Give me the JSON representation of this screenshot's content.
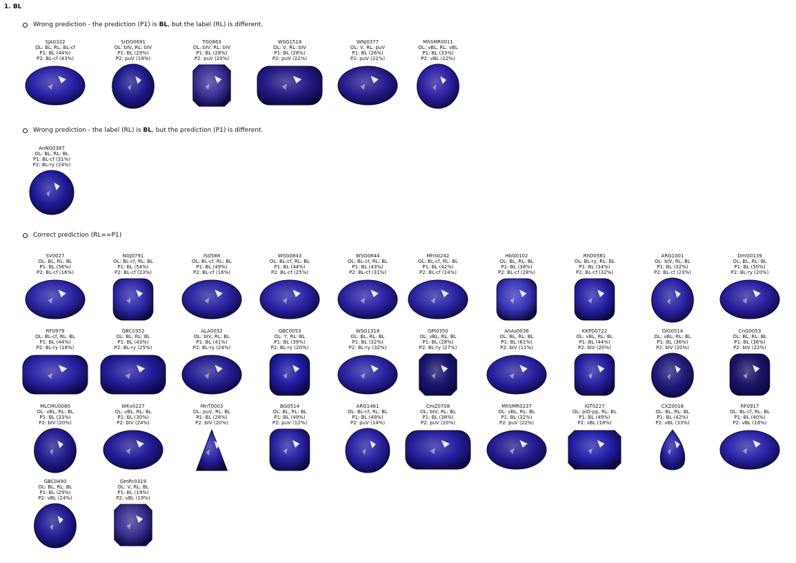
{
  "heading": "1. BL",
  "sections": [
    {
      "text_before": "Wrong prediction - the prediction (P1) is ",
      "bold": "BL",
      "text_after": ", but the label (RL) is different.",
      "gems": [
        {
          "id": "SJA0322",
          "ol": "OL: BL, RL: BL-cf",
          "p1": "P1: BL (44%)",
          "p2": "P2: BL-cf (43%)",
          "shape": "oval",
          "color": "#2a22a8"
        },
        {
          "id": "SrDG0691",
          "ol": "OL: bIV, RL: bIV",
          "p1": "P1: BL (29%)",
          "p2": "P2: puV (19%)",
          "shape": "round-oval",
          "color": "#1e1a8c"
        },
        {
          "id": "TG0863",
          "ol": "OL: bIV, RL: bIV",
          "p1": "P1: BL (28%)",
          "p2": "P2: puV (20%)",
          "shape": "cushion-square",
          "color": "#3b3296"
        },
        {
          "id": "WSG1518",
          "ol": "OL: V, RL: bIV",
          "p1": "P1: BL (28%)",
          "p2": "P2: puV (22%)",
          "shape": "cushion-wide",
          "color": "#241b86"
        },
        {
          "id": "WNJ0377",
          "ol": "OL: V, RL: puV",
          "p1": "P1: BL (26%)",
          "p2": "P2: puV (22%)",
          "shape": "oval",
          "color": "#271d8e"
        },
        {
          "id": "MhSMR0011",
          "ol": "OL: vBL, RL: vBL",
          "p1": "P1: BL (33%)",
          "p2": "P2: vBL (22%)",
          "shape": "round-oval",
          "color": "#2b1fa0"
        }
      ]
    },
    {
      "text_before": "Wrong prediction - the label (RL) is ",
      "bold": "BL",
      "text_after": ", but the prediction (P1) is different.",
      "gems": [
        {
          "id": "AnNG0387",
          "ol": "OL: BL, RL: BL",
          "p1": "P1: BL-cf (31%)",
          "p2": "P2: BL-ry (24%)",
          "shape": "round",
          "color": "#201a9a"
        }
      ]
    },
    {
      "text_before": "Correct prediction (RL==P1)",
      "bold": "",
      "text_after": "",
      "gems": [
        {
          "id": "SV0027",
          "ol": "OL: BL, RL: BL",
          "p1": "P1: BL (56%)",
          "p2": "P2: BL-cf (16%)",
          "shape": "oval",
          "color": "#2c25a6"
        },
        {
          "id": "NGJ0791",
          "ol": "OL: BL-cf, RL: BL",
          "p1": "P1: BL (54%)",
          "p2": "P2: BL-cf (23%)",
          "shape": "cushion",
          "color": "#3029a8"
        },
        {
          "id": "IS0588",
          "ol": "OL: BL-cf, RL: BL",
          "p1": "P1: BL (49%)",
          "p2": "P2: BL-cf (16%)",
          "shape": "oval",
          "color": "#2a23a0"
        },
        {
          "id": "WSG0843",
          "ol": "OL: BL-cf, RL: BL",
          "p1": "P1: BL (44%)",
          "p2": "P2: BL-cf (25%)",
          "shape": "oval",
          "color": "#2a22a4"
        },
        {
          "id": "WSG0844",
          "ol": "OL: BL-cf, RL: BL",
          "p1": "P1: BL (43%)",
          "p2": "P2: BL-cf (31%)",
          "shape": "oval",
          "color": "#2b22a2"
        },
        {
          "id": "MhS0242",
          "ol": "OL: BL-cf, RL: BL",
          "p1": "P1: BL (42%)",
          "p2": "P2: BL-cf (14%)",
          "shape": "oval",
          "color": "#2b25a4"
        },
        {
          "id": "HbG0102",
          "ol": "OL: BL, RL: BL",
          "p1": "P1: BL (38%)",
          "p2": "P2: BL-cf (28%)",
          "shape": "cushion",
          "color": "#3b36b8"
        },
        {
          "id": "RhD0561",
          "ol": "OL: BL-ry, RL: BL",
          "p1": "P1: BL (34%)",
          "p2": "P2: BL-cf (32%)",
          "shape": "cushion",
          "color": "#2a22a6"
        },
        {
          "id": "ARG1001",
          "ol": "OL: bIV, RL: BL",
          "p1": "P1: BL (32%)",
          "p2": "P2: BL-cf (23%)",
          "shape": "round-oval",
          "color": "#2a22a0"
        },
        {
          "id": "DmG0139",
          "ol": "OL: BL, RL: BL",
          "p1": "P1: BL (50%)",
          "p2": "P2: BL-ry (20%)",
          "shape": "oval",
          "color": "#2a1f9e"
        },
        {
          "id": "RF0979",
          "ol": "OL: BL-cf, RL: BL",
          "p1": "P1: BL (44%)",
          "p2": "P2: BL-ry (18%)",
          "shape": "cushion-wide",
          "color": "#2b22a4"
        },
        {
          "id": "GBC0352",
          "ol": "OL: BL, RL: BL",
          "p1": "P1: BL (43%)",
          "p2": "P2: BL-ry (25%)",
          "shape": "cushion-wide",
          "color": "#231c9a"
        },
        {
          "id": "ALA0032",
          "ol": "OL: bIV, RL: BL",
          "p1": "P1: BL (41%)",
          "p2": "P2: BL-ry (24%)",
          "shape": "oval",
          "color": "#241d90"
        },
        {
          "id": "GBC0053",
          "ol": "OL: Y, RL: BL",
          "p1": "P1: BL (39%)",
          "p2": "P2: BL-ry (20%)",
          "shape": "cushion",
          "color": "#1f1aa0"
        },
        {
          "id": "WSG1318",
          "ol": "OL: BL, RL: BL",
          "p1": "P1: BL (32%)",
          "p2": "P2: BL-ry (32%)",
          "shape": "oval",
          "color": "#2a22a2"
        },
        {
          "id": "GPI0350",
          "ol": "OL: vBL, RL: BL",
          "p1": "P1: BL (28%)",
          "p2": "P2: BL-ry (27%)",
          "shape": "cushion-square",
          "color": "#1a1570"
        },
        {
          "id": "AhAs0036",
          "ol": "OL: BL, RL: BL",
          "p1": "P1: BL (61%)",
          "p2": "P2: bIV (11%)",
          "shape": "oval",
          "color": "#2721a0"
        },
        {
          "id": "KKPD0722",
          "ol": "OL: vBL, RL: BL",
          "p1": "P1: BL (44%)",
          "p2": "P2: bIV (20%)",
          "shape": "cushion",
          "color": "#2820a0"
        },
        {
          "id": "DiG0514",
          "ol": "OL: vBL, RL: BL",
          "p1": "P1: BL (36%)",
          "p2": "P2: bIV (20%)",
          "shape": "round-oval",
          "color": "#1f1a78"
        },
        {
          "id": "CnG0053",
          "ol": "OL: BL, RL: BL",
          "p1": "P1: BL (36%)",
          "p2": "P2: bIV (22%)",
          "shape": "cushion",
          "color": "#1c1466"
        },
        {
          "id": "MLCMU0080",
          "ol": "OL: vBL, RL: BL",
          "p1": "P1: BL (33%)",
          "p2": "P2: bIV (20%)",
          "shape": "round-oval",
          "color": "#221c8e"
        },
        {
          "id": "WKv0227",
          "ol": "OL: vBL, RL: BL",
          "p1": "P1: BL (30%)",
          "p2": "P2: bIV (24%)",
          "shape": "oval",
          "color": "#221b94"
        },
        {
          "id": "MnT0003",
          "ol": "OL: puV, RL: BL",
          "p1": "P1: BL (28%)",
          "p2": "P2: bIV (20%)",
          "shape": "trillion",
          "color": "#2a22a0"
        },
        {
          "id": "BG0514",
          "ol": "OL: BL, RL: BL",
          "p1": "P1: BL (49%)",
          "p2": "P2: puV (12%)",
          "shape": "cushion",
          "color": "#2a22a0"
        },
        {
          "id": "ARG1461",
          "ol": "OL: BL-cf, RL: BL",
          "p1": "P1: BL (49%)",
          "p2": "P2: puV (14%)",
          "shape": "round",
          "color": "#2920a0"
        },
        {
          "id": "CmZ0708",
          "ol": "OL: bIV, RL: BL",
          "p1": "P1: BL (38%)",
          "p2": "P2: puV (20%)",
          "shape": "cushion-wide",
          "color": "#2620a0"
        },
        {
          "id": "MhSMR0237",
          "ol": "OL: vBL, RL: BL",
          "p1": "P1: BL (32%)",
          "p2": "P2: puV (22%)",
          "shape": "oval",
          "color": "#241c92"
        },
        {
          "id": "IGT0227",
          "ol": "OL: piO-pp, RL: BL",
          "p1": "P1: BL (49%)",
          "p2": "P2: vBL (18%)",
          "shape": "emerald",
          "color": "#2520a8"
        },
        {
          "id": "CXZ0018",
          "ol": "OL: BL, RL: BL",
          "p1": "P1: BL (42%)",
          "p2": "P2: vBL (33%)",
          "shape": "pear",
          "color": "#2520a0"
        },
        {
          "id": "RF0917",
          "ol": "OL: BL-cf, RL: BL",
          "p1": "P1: BL (40%)",
          "p2": "P2: vBL (16%)",
          "shape": "oval",
          "color": "#2b22a6"
        },
        {
          "id": "GBC0490",
          "ol": "OL: BL, RL: BL",
          "p1": "P1: BL (29%)",
          "p2": "P2: vBL (24%)",
          "shape": "round-oval",
          "color": "#221c90"
        },
        {
          "id": "GmPc0319",
          "ol": "OL: V, RL: BL",
          "p1": "P1: BL (19%)",
          "p2": "P2: vBL (19%)",
          "shape": "cushion-square",
          "color": "#3a3290"
        }
      ]
    }
  ]
}
